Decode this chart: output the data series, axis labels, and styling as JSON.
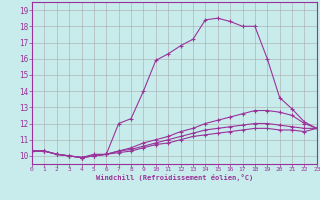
{
  "xlabel": "Windchill (Refroidissement éolien,°C)",
  "background_color": "#c8ecec",
  "line_color": "#993399",
  "grid_color": "#aaaaaa",
  "xlim": [
    0,
    23
  ],
  "ylim": [
    9.5,
    19.5
  ],
  "xticks": [
    0,
    1,
    2,
    3,
    4,
    5,
    6,
    7,
    8,
    9,
    10,
    11,
    12,
    13,
    14,
    15,
    16,
    17,
    18,
    19,
    20,
    21,
    22,
    23
  ],
  "yticks": [
    10,
    11,
    12,
    13,
    14,
    15,
    16,
    17,
    18,
    19
  ],
  "line1_x": [
    0,
    1,
    2,
    3,
    4,
    5,
    6,
    7,
    8,
    9,
    10,
    11,
    12,
    13,
    14,
    15,
    16,
    17,
    18,
    19,
    20,
    21,
    22,
    23
  ],
  "line1_y": [
    10.3,
    10.3,
    10.1,
    10.0,
    9.9,
    10.1,
    10.1,
    12.0,
    12.3,
    14.0,
    15.9,
    16.3,
    16.8,
    17.2,
    18.4,
    18.5,
    18.3,
    18.0,
    18.0,
    16.0,
    13.6,
    12.9,
    12.1,
    11.7
  ],
  "line2_x": [
    0,
    1,
    2,
    3,
    4,
    5,
    6,
    7,
    8,
    9,
    10,
    11,
    12,
    13,
    14,
    15,
    16,
    17,
    18,
    19,
    20,
    21,
    22,
    23
  ],
  "line2_y": [
    10.3,
    10.3,
    10.1,
    10.0,
    9.9,
    10.0,
    10.1,
    10.3,
    10.5,
    10.8,
    11.0,
    11.2,
    11.5,
    11.7,
    12.0,
    12.2,
    12.4,
    12.6,
    12.8,
    12.8,
    12.7,
    12.5,
    12.0,
    11.7
  ],
  "line3_x": [
    0,
    1,
    2,
    3,
    4,
    5,
    6,
    7,
    8,
    9,
    10,
    11,
    12,
    13,
    14,
    15,
    16,
    17,
    18,
    19,
    20,
    21,
    22,
    23
  ],
  "line3_y": [
    10.3,
    10.3,
    10.1,
    10.0,
    9.9,
    10.0,
    10.1,
    10.3,
    10.4,
    10.6,
    10.8,
    11.0,
    11.2,
    11.4,
    11.6,
    11.7,
    11.8,
    11.9,
    12.0,
    12.0,
    11.9,
    11.8,
    11.7,
    11.7
  ],
  "line4_x": [
    0,
    1,
    2,
    3,
    4,
    5,
    6,
    7,
    8,
    9,
    10,
    11,
    12,
    13,
    14,
    15,
    16,
    17,
    18,
    19,
    20,
    21,
    22,
    23
  ],
  "line4_y": [
    10.3,
    10.3,
    10.1,
    10.0,
    9.9,
    10.0,
    10.1,
    10.2,
    10.3,
    10.5,
    10.7,
    10.8,
    11.0,
    11.2,
    11.3,
    11.4,
    11.5,
    11.6,
    11.7,
    11.7,
    11.6,
    11.6,
    11.5,
    11.7
  ]
}
